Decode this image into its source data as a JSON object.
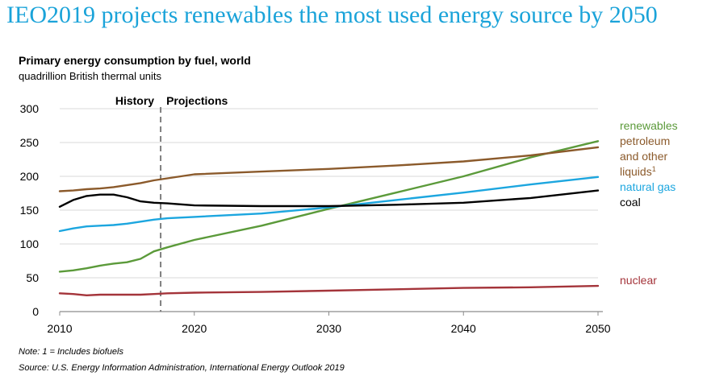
{
  "slide": {
    "title": "IEO2019 projects renewables the most used energy source by 2050"
  },
  "notes": {
    "note": "Note: 1 = Includes biofuels",
    "source": "Source:  U.S. Energy Information Administration, International Energy Outlook 2019"
  },
  "chart_data": {
    "type": "line",
    "title": "Primary energy consumption by fuel, world",
    "subtitle": "quadrillion British thermal units",
    "xlim": [
      2010,
      2050
    ],
    "ylim": [
      0,
      300
    ],
    "x_ticks": [
      2010,
      2020,
      2030,
      2040,
      2050
    ],
    "y_ticks": [
      0,
      50,
      100,
      150,
      200,
      250,
      300
    ],
    "grid": "horizontal",
    "divider": {
      "x": 2017.5,
      "left_label": "History",
      "right_label": "Projections"
    },
    "legend_placement": "right, at line ends",
    "series": [
      {
        "name": "renewables",
        "label_lines": [
          "renewables"
        ],
        "color": "#5b9a3a",
        "x": [
          2010,
          2011,
          2012,
          2013,
          2014,
          2015,
          2016,
          2017,
          2018,
          2020,
          2025,
          2030,
          2035,
          2040,
          2045,
          2050
        ],
        "y": [
          59,
          61,
          64,
          68,
          71,
          73,
          78,
          89,
          95,
          106,
          127,
          152,
          176,
          200,
          228,
          252
        ]
      },
      {
        "name": "petroleum and other liquids",
        "label_lines": [
          "petroleum",
          "and other",
          "liquids"
        ],
        "superscript": "1",
        "color": "#8b5a2b",
        "x": [
          2010,
          2011,
          2012,
          2013,
          2014,
          2015,
          2016,
          2017,
          2018,
          2020,
          2025,
          2030,
          2035,
          2040,
          2045,
          2050
        ],
        "y": [
          178,
          179,
          181,
          182,
          184,
          187,
          190,
          194,
          197,
          203,
          207,
          211,
          216,
          222,
          231,
          243
        ]
      },
      {
        "name": "natural gas",
        "label_lines": [
          "natural gas"
        ],
        "color": "#1ca6df",
        "x": [
          2010,
          2011,
          2012,
          2013,
          2014,
          2015,
          2016,
          2017,
          2018,
          2020,
          2025,
          2030,
          2035,
          2040,
          2045,
          2050
        ],
        "y": [
          119,
          123,
          126,
          127,
          128,
          130,
          133,
          136,
          138,
          140,
          145,
          154,
          165,
          176,
          188,
          199
        ]
      },
      {
        "name": "coal",
        "label_lines": [
          "coal"
        ],
        "color": "#000000",
        "x": [
          2010,
          2011,
          2012,
          2013,
          2014,
          2015,
          2016,
          2017,
          2018,
          2020,
          2025,
          2030,
          2035,
          2040,
          2045,
          2050
        ],
        "y": [
          155,
          165,
          171,
          173,
          173,
          169,
          163,
          161,
          160,
          157,
          156,
          156,
          158,
          161,
          168,
          179
        ]
      },
      {
        "name": "nuclear",
        "label_lines": [
          "nuclear"
        ],
        "color": "#a4343a",
        "x": [
          2010,
          2011,
          2012,
          2013,
          2014,
          2015,
          2016,
          2017,
          2018,
          2020,
          2025,
          2030,
          2035,
          2040,
          2045,
          2050
        ],
        "y": [
          27,
          26,
          24,
          25,
          25,
          25,
          25,
          26,
          27,
          28,
          29,
          31,
          33,
          35,
          36,
          38
        ]
      }
    ]
  }
}
